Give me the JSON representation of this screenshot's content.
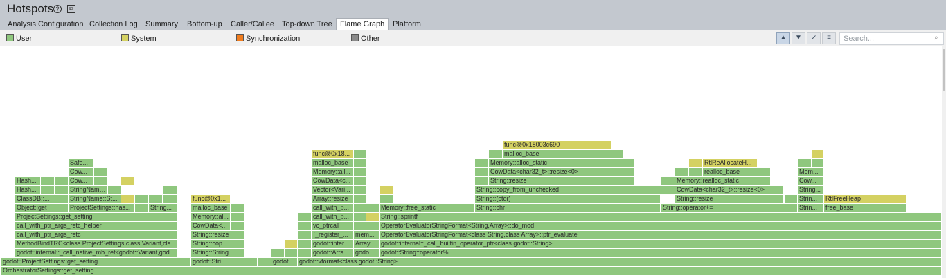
{
  "header": {
    "title": "Hotspots"
  },
  "tabs": [
    {
      "label": "Analysis Configuration"
    },
    {
      "label": "Collection Log"
    },
    {
      "label": "Summary"
    },
    {
      "label": "Bottom-up"
    },
    {
      "label": "Caller/Callee"
    },
    {
      "label": "Top-down Tree"
    },
    {
      "label": "Flame Graph"
    },
    {
      "label": "Platform"
    }
  ],
  "active_tab": "Flame Graph",
  "legend": [
    {
      "label": "User",
      "color": "#8fc77e"
    },
    {
      "label": "System",
      "color": "#d4d162"
    },
    {
      "label": "Synchronization",
      "color": "#f07c1e"
    },
    {
      "label": "Other",
      "color": "#8a8a8a"
    }
  ],
  "search": {
    "placeholder": "Search..."
  },
  "colors": {
    "user": "#8fc77e",
    "system": "#d4d162"
  },
  "frames": [
    "OrchestratorSettings::get_setting",
    "godot::ProjectSettings::get_setting",
    "godot::Stri...",
    "godot...",
    "godot::vformat<class godot::String>",
    "godot::internal::_call_native_mb_ret<godot::Variant,god...",
    "String::String",
    "godot::Arra...",
    "godo...",
    "godot::String::operator%",
    "MethodBindTRC<class ProjectSettings,class Variant,cla...",
    "String::cop...",
    "godot::inter...",
    "Array...",
    "godot::internal::_call_builtin_operator_ptr<class godot::String>",
    "call_with_ptr_args_retc",
    "String::resize",
    "`_register_...",
    "mem...",
    "OperatorEvaluatorStringFormat<class String,class Array>::ptr_evaluate",
    "call_with_ptr_args_retc_helper",
    "CowData<...",
    "vc_ptrcall",
    "OperatorEvaluatorStringFormat<String,Array>::do_mod",
    "ProjectSettings::get_setting",
    "Memory::al...",
    "call_with_p...",
    "String::sprintf",
    "Object::get",
    "ProjectSettings::has...",
    "String...",
    "malloc_base",
    "Memory::free_static",
    "String::chr",
    "String::operator+=",
    "Strin...",
    "free_base",
    "ClassDB::...",
    "StringName::St...",
    "func@0x1...",
    "Array::resize",
    "String::(ctor)",
    "String::resize",
    "RtlFreeHeap",
    "Hash...",
    "StringName::_...",
    "Vector<Vari...",
    "String::copy_from_unchecked",
    "CowData<char32_t>::resize<0>",
    "String...",
    "Cow...",
    "CowData<c...",
    "Memory::realloc_static",
    "Memory::all...",
    "CowData<char32_t>::resize<0>",
    "Mem...",
    "Safe...",
    "Memory::alloc_static",
    "realloc_base",
    "func@0x18...",
    "RtlReAllocateH...",
    "func@0x18003c690"
  ]
}
